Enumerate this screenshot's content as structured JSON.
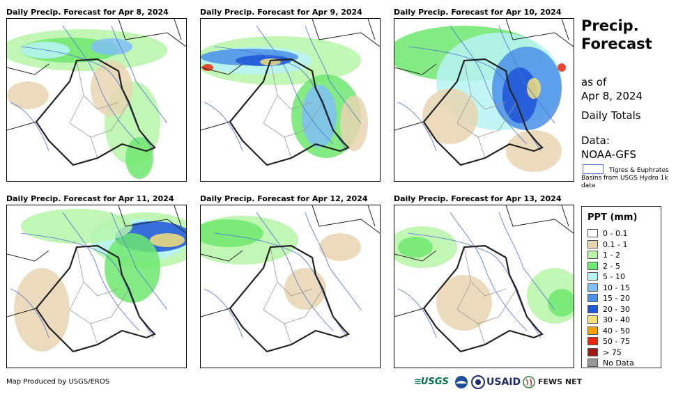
{
  "panels": [
    {
      "title": "Daily Precip. Forecast for Apr 8, 2024"
    },
    {
      "title": "Daily Precip. Forecast for Apr 9, 2024"
    },
    {
      "title": "Daily Precip. Forecast for Apr 10, 2024"
    },
    {
      "title": "Daily Precip. Forecast for Apr 11, 2024"
    },
    {
      "title": "Daily Precip. Forecast for Apr 12, 2024"
    },
    {
      "title": "Daily Precip. Forecast for Apr 13, 2024"
    }
  ],
  "side": {
    "title_line1": "Precip.",
    "title_line2": "Forecast",
    "as_of_line1": "as of",
    "as_of_line2": "Apr 8, 2024",
    "daily_totals": "Daily Totals",
    "data_line1": "Data:",
    "data_line2": "NOAA-GFS",
    "basin_text": "Tigres & Euphrates Basins from USGS Hydro 1k data"
  },
  "legend": {
    "title": "PPT (mm)",
    "items": [
      {
        "label": "0 - 0.1",
        "color": "#ffffff"
      },
      {
        "label": "0.1 - 1",
        "color": "#e8d5b0"
      },
      {
        "label": "1 - 2",
        "color": "#b6f5a8"
      },
      {
        "label": "2 - 5",
        "color": "#6ee86e"
      },
      {
        "label": "5 - 10",
        "color": "#b6f3f5"
      },
      {
        "label": "10 - 15",
        "color": "#7fbef5"
      },
      {
        "label": "15 - 20",
        "color": "#4a8fe8"
      },
      {
        "label": "20 - 30",
        "color": "#1f55d8"
      },
      {
        "label": "30 - 40",
        "color": "#f3e07a"
      },
      {
        "label": "40 - 50",
        "color": "#f5a000"
      },
      {
        "label": "50 - 75",
        "color": "#e8280a"
      },
      {
        "label": "> 75",
        "color": "#a01818"
      },
      {
        "label": "No Data",
        "color": "#999999"
      }
    ]
  },
  "footer": {
    "credit": "Map Produced by USGS/EROS"
  },
  "logos": {
    "usgs": "USGS",
    "usaid": "USAID",
    "fews": "FEWS NET"
  }
}
